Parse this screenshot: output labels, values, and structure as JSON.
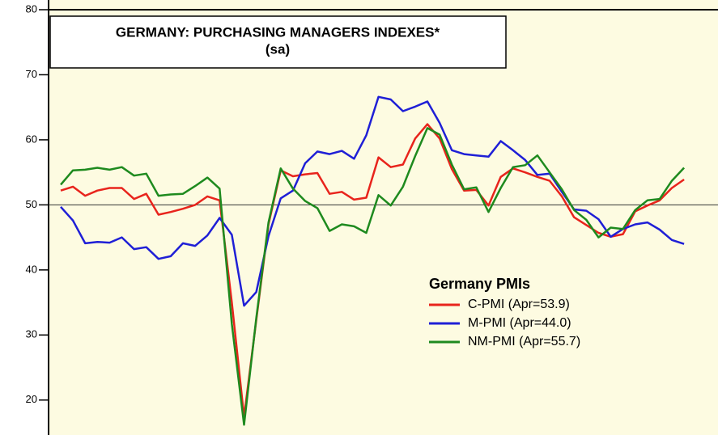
{
  "chart_data": {
    "type": "line",
    "title": "GERMANY: PURCHASING MANAGERS INDEXES*",
    "subtitle": "(sa)",
    "legend_title": "Germany PMIs",
    "categories": [
      null,
      null,
      null,
      null,
      null,
      null,
      null,
      null,
      null,
      null,
      null,
      null,
      null,
      null,
      null,
      null,
      null,
      null,
      null,
      null,
      null,
      null,
      null,
      null,
      null,
      null,
      null,
      null,
      null,
      null,
      null,
      null,
      null,
      null,
      null,
      null,
      null,
      null,
      null,
      null,
      null,
      null,
      null,
      null,
      null,
      null,
      null,
      null,
      null,
      null,
      null,
      null
    ],
    "series": [
      {
        "name": "C-PMI (Apr=53.9)",
        "color": "#e8241c",
        "values": [
          52.2,
          52.8,
          51.4,
          52.2,
          52.6,
          52.6,
          50.9,
          51.7,
          48.5,
          48.9,
          49.4,
          50.0,
          51.3,
          50.7,
          35.0,
          17.4,
          32.3,
          47.0,
          55.3,
          54.4,
          54.7,
          54.9,
          51.7,
          52.0,
          50.8,
          51.1,
          57.3,
          55.8,
          56.2,
          60.2,
          62.4,
          60.2,
          55.5,
          52.2,
          52.3,
          49.9,
          54.3,
          55.6,
          55.0,
          54.3,
          53.7,
          51.3,
          48.1,
          46.9,
          45.7,
          45.1,
          45.5,
          49.0,
          49.9,
          50.7,
          52.6,
          53.9
        ]
      },
      {
        "name": "M-PMI (Apr=44.0)",
        "color": "#1f1fd6",
        "values": [
          49.7,
          47.6,
          44.1,
          44.3,
          44.2,
          45.0,
          43.2,
          43.5,
          41.7,
          42.1,
          44.1,
          43.7,
          45.3,
          48.0,
          45.4,
          34.5,
          36.6,
          45.2,
          51.0,
          52.2,
          56.4,
          58.2,
          57.8,
          58.3,
          57.1,
          60.7,
          66.6,
          66.2,
          64.4,
          65.1,
          65.9,
          62.6,
          58.4,
          57.8,
          57.6,
          57.4,
          59.8,
          58.4,
          56.9,
          54.6,
          54.8,
          52.0,
          49.3,
          49.1,
          47.8,
          45.1,
          46.3,
          47.0,
          47.3,
          46.2,
          44.6,
          44.0
        ]
      },
      {
        "name": "NM-PMI (Apr=55.7)",
        "color": "#1e8a1e",
        "values": [
          53.1,
          55.3,
          55.4,
          55.7,
          55.4,
          55.8,
          54.5,
          54.8,
          51.4,
          51.6,
          51.7,
          52.9,
          54.2,
          52.5,
          31.7,
          16.2,
          32.6,
          47.3,
          55.6,
          52.5,
          50.6,
          49.5,
          46.0,
          47.0,
          46.7,
          45.7,
          51.5,
          49.9,
          52.8,
          57.5,
          61.8,
          60.8,
          56.2,
          52.4,
          52.7,
          48.9,
          52.6,
          55.8,
          56.1,
          57.6,
          55.0,
          52.4,
          49.2,
          47.7,
          45.0,
          46.5,
          46.3,
          49.2,
          50.7,
          50.9,
          53.7,
          55.7
        ]
      }
    ],
    "reference_line": 50,
    "ylim": [
      15,
      80
    ],
    "yticks": [
      20,
      30,
      40,
      50,
      60,
      70,
      80
    ],
    "background": "#fdfbe1"
  }
}
